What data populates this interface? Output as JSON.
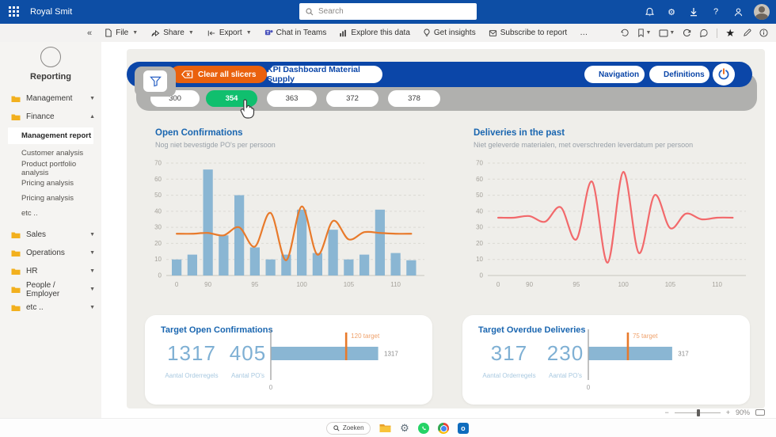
{
  "topbar": {
    "brand": "Royal Smit",
    "search_placeholder": "Search"
  },
  "toolbar": {
    "collapse": "«",
    "file": "File",
    "share": "Share",
    "export": "Export",
    "chat": "Chat in Teams",
    "explore": "Explore this data",
    "insights": "Get insights",
    "subscribe": "Subscribe to report",
    "more": "…"
  },
  "sidebar": {
    "workspace": "Reporting",
    "top_folders": [
      "Management",
      "Finance"
    ],
    "pages": [
      "Management report",
      "Customer analysis",
      "Product portfolio analysis",
      "Pricing analysis",
      "Pricing analysis",
      "etc .."
    ],
    "selected_page": "Management report",
    "bottom_folders": [
      "Sales",
      "Operations",
      "HR",
      "People / Employer",
      "etc .."
    ]
  },
  "report": {
    "clear_button": "Clear all slicers",
    "title": "KPI Dashboard Material Supply",
    "navigation": "Navigation",
    "definitions": "Definitions"
  },
  "slicers": {
    "values": [
      "300",
      "354",
      "363",
      "372",
      "378"
    ],
    "selected": "354"
  },
  "chart_data": [
    {
      "type": "bar",
      "title": "Open Confirmations",
      "subtitle": "Nog niet bevestigde PO's per persoon",
      "ylim": [
        0,
        70
      ],
      "y_ticks": [
        0,
        10,
        20,
        30,
        40,
        50,
        60,
        70
      ],
      "x_ticks": [
        "0",
        "90",
        "95",
        "100",
        "105",
        "110"
      ],
      "x_tick_indices": [
        0,
        2,
        5,
        8,
        11,
        14
      ],
      "bar_values": [
        10,
        13,
        66,
        25,
        50,
        17.5,
        10,
        13,
        41,
        14,
        28.5,
        10,
        13,
        41,
        14,
        9.5
      ],
      "line_values": [
        26,
        26,
        26.5,
        25,
        30,
        18,
        39,
        9.5,
        43,
        13,
        34,
        22.5,
        27,
        26.5,
        26,
        26
      ],
      "bar_color": "#8ab6d3",
      "line_color": "#e87a2b",
      "grid": "dashed"
    },
    {
      "type": "line",
      "title": "Deliveries in the past",
      "subtitle": "Niet geleverde materialen, met overschreden leverdatum per persoon",
      "ylim": [
        0,
        70
      ],
      "y_ticks": [
        0,
        10,
        20,
        30,
        40,
        50,
        60,
        70
      ],
      "x_ticks": [
        "0",
        "90",
        "95",
        "100",
        "105",
        "110"
      ],
      "x_tick_indices": [
        0,
        2,
        5,
        8,
        11,
        14
      ],
      "line_values": [
        36,
        36,
        37,
        33.5,
        42.5,
        22.5,
        58.5,
        8,
        64.5,
        14,
        50,
        29.5,
        38.5,
        35,
        36,
        36
      ],
      "line_color": "#f2696b",
      "grid": "dashed"
    },
    {
      "type": "bullet",
      "title": "Target Open Confirmations",
      "kpis": [
        {
          "value": "1317",
          "label": "Aantal Orderregels"
        },
        {
          "value": "405",
          "label": "Aantal PO's"
        }
      ],
      "bar_value": 1317,
      "bar_label": "1317",
      "target_label": "120 target",
      "axis_label": "0",
      "bar_frac": 1.0,
      "target_frac": 0.705,
      "bar_color": "#8ab6d3",
      "target_color": "#e87a2b"
    },
    {
      "type": "bullet",
      "title": "Target Overdue Deliveries",
      "kpis": [
        {
          "value": "317",
          "label": "Aantal Orderregels"
        },
        {
          "value": "230",
          "label": "Aantal PO's"
        }
      ],
      "bar_value": 317,
      "bar_label": "317",
      "target_label": "75 target",
      "axis_label": "0",
      "bar_frac": 0.78,
      "target_frac": 0.37,
      "bar_color": "#8ab6d3",
      "target_color": "#e87a2b"
    }
  ],
  "zoom": {
    "minus": "−",
    "plus": "+",
    "level": "90%"
  },
  "taskbar": {
    "search": "Zoeken"
  },
  "colors": {
    "topbar_blue": "#0d4ea5",
    "header_blue": "#0b46a8",
    "accent_orange": "#ea610d",
    "selected_green": "#10bf6e",
    "bar_blue": "#8ab6d3",
    "line_red": "#f2696b"
  }
}
